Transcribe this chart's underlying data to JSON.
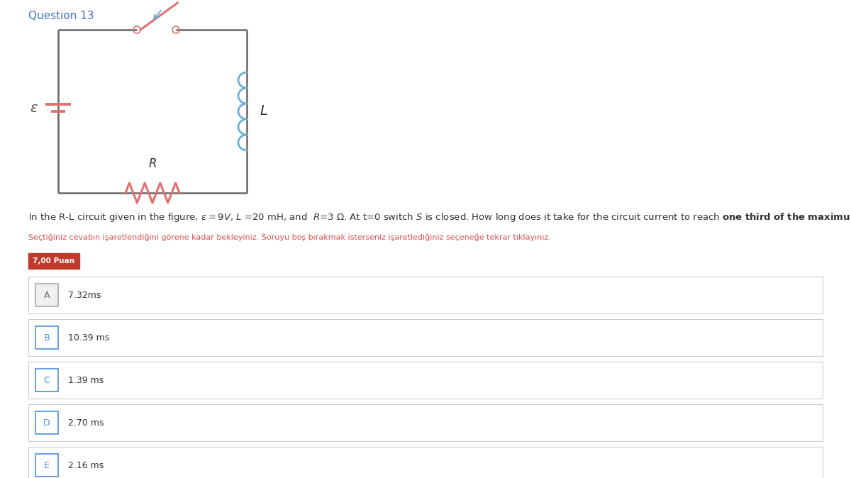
{
  "title": "Question 13",
  "title_color": "#4472c4",
  "question_line": "In the R-L circuit given in the figure, ε = 9V, L =20 mH, and  R=3 Ω. At t=0 switch S is closed. How long does it take for the circuit current to reach one third of the maximum current (Iₘᵤₓ)?",
  "note_text": "Seçtiğiniz cevabın işaretlendiğini görene kadar bekleyiniz. Soruyu boş bırakmak isterseniz işaretlediğiniz seçeneğe tekrar tıklayınız.",
  "points_label": "7,00 Puan",
  "options": [
    {
      "label": "A",
      "text": "7.32ms"
    },
    {
      "label": "B",
      "text": "10.39 ms"
    },
    {
      "label": "C",
      "text": "1.39 ms"
    },
    {
      "label": "D",
      "text": "2.70 ms"
    },
    {
      "label": "E",
      "text": "2.16 ms"
    }
  ],
  "wire_color": "#666666",
  "switch_color": "#e07070",
  "switch_arrow_color": "#6ab0d4",
  "inductor_color": "#6ab0d4",
  "resistor_color": "#e07070",
  "battery_color": "#e07070",
  "epsilon_color": "#555555",
  "bg_color": "#ffffff",
  "text_color": "#333333",
  "note_color": "#e05050",
  "points_bg": "#c0392b",
  "points_fg": "#ffffff",
  "option_border_color": "#cccccc",
  "label_border_color": "#4a90d9",
  "label_text_color": "#4a90d9"
}
